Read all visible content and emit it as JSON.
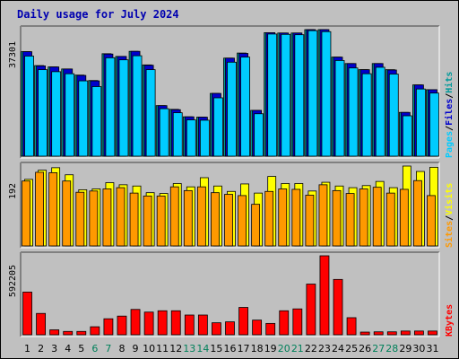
{
  "title": "Daily usage for July 2024",
  "chart_data": {
    "type": "bar",
    "x": [
      "1",
      "2",
      "3",
      "4",
      "5",
      "6",
      "7",
      "8",
      "9",
      "10",
      "11",
      "12",
      "13",
      "14",
      "15",
      "16",
      "17",
      "18",
      "19",
      "20",
      "21",
      "22",
      "23",
      "24",
      "25",
      "26",
      "27",
      "28",
      "29",
      "30",
      "31"
    ],
    "weekend_days": [
      "6",
      "7",
      "13",
      "14",
      "20",
      "21",
      "27",
      "28"
    ],
    "panels": [
      {
        "name": "hits-files-pages",
        "max_label": "37301",
        "ymax": 37301,
        "legend": [
          "Pages",
          "/",
          "Files",
          "/",
          "Hits"
        ],
        "series": [
          {
            "name": "Hits",
            "color": "#009999",
            "values": [
              30800,
              26700,
              26300,
              25700,
              23900,
              22300,
              30200,
              29400,
              30900,
              26900,
              14900,
              13800,
              11600,
              11500,
              18500,
              28900,
              30400,
              13500,
              36400,
              36300,
              36300,
              37300,
              37301,
              29200,
              27300,
              25500,
              27300,
              25500,
              12900,
              21000,
              19600
            ]
          },
          {
            "name": "Files",
            "color": "#0000cc",
            "values": [
              30800,
              26600,
              26300,
              25700,
              23800,
              22200,
              30100,
              29400,
              30900,
              26800,
              14900,
              13700,
              11600,
              11500,
              18500,
              28900,
              30300,
              13500,
              36400,
              36300,
              36300,
              37300,
              37301,
              29200,
              27300,
              25500,
              27300,
              25400,
              12900,
              21000,
              19600
            ]
          },
          {
            "name": "Pages",
            "color": "#00ccff",
            "values": [
              29500,
              25500,
              24900,
              24300,
              22200,
              20500,
              29000,
              28400,
              29600,
              25500,
              14000,
              12800,
              10700,
              10600,
              17200,
              27700,
              29200,
              12500,
              36000,
              35900,
              35800,
              37000,
              36700,
              28200,
              26000,
              24300,
              26200,
              24200,
              11900,
              19800,
              18600
            ]
          }
        ]
      },
      {
        "name": "visits-sites",
        "max_label": "192",
        "ymax": 192,
        "legend": [
          "Sites",
          "/",
          "Visits"
        ],
        "series": [
          {
            "name": "Visits",
            "color": "#ffff00",
            "values": [
              160,
              182,
              188,
              171,
              135,
              137,
              152,
              147,
              144,
              128,
              126,
              150,
              142,
              164,
              144,
              131,
              149,
              127,
              167,
              150,
              150,
              132,
              153,
              144,
              140,
              145,
              155,
              140,
              192,
              179,
              189
            ]
          },
          {
            "name": "Sites",
            "color": "#ff9900",
            "values": [
              156,
              177,
              176,
              156,
              129,
              132,
              137,
              140,
              127,
              120,
              120,
              142,
              133,
              142,
              128,
              124,
              121,
              100,
              131,
              137,
              136,
              122,
              147,
              133,
              126,
              137,
              141,
              127,
              136,
              157,
              121
            ]
          }
        ]
      },
      {
        "name": "kbytes",
        "max_label": "592205",
        "ymax": 592205,
        "legend": [
          "KBytes"
        ],
        "series": [
          {
            "name": "KBytes",
            "color": "#ff0000",
            "values": [
              320000,
              160000,
              37000,
              25000,
              25000,
              60000,
              120000,
              140000,
              190000,
              170000,
              180000,
              180000,
              148000,
              148000,
              90000,
              97000,
              205000,
              110000,
              85000,
              180000,
              194000,
              380000,
              592205,
              415000,
              128000,
              20000,
              22000,
              22000,
              28000,
              28000,
              28000
            ]
          }
        ]
      }
    ]
  }
}
